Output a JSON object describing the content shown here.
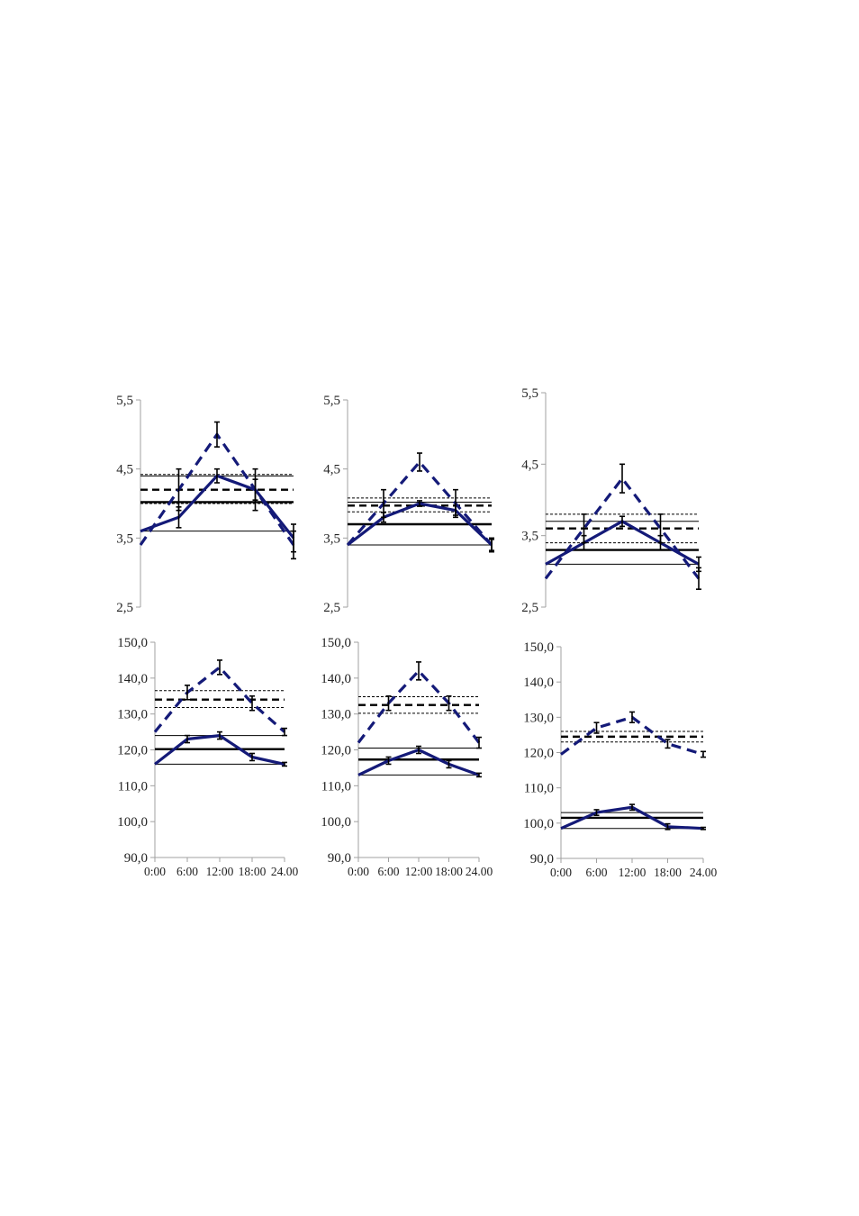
{
  "colors": {
    "series": "#141a78",
    "ref": "#000000",
    "axis": "#a0a0a0"
  },
  "chart_data": [
    {
      "type": "line",
      "yticks": [
        "5,5",
        "4,5",
        "3,5",
        "2,5"
      ],
      "ylim": [
        2.5,
        5.5
      ],
      "xlim": [
        0,
        24
      ],
      "x": [
        0,
        6,
        12,
        18,
        24
      ],
      "xticks": [],
      "series": [
        {
          "style": "solid",
          "values": [
            3.6,
            3.8,
            4.4,
            4.2,
            3.5
          ],
          "errors": [
            0,
            0.15,
            0.1,
            0.15,
            0.2
          ]
        },
        {
          "style": "dashed",
          "values": [
            3.4,
            4.2,
            5.0,
            4.2,
            3.4
          ],
          "errors": [
            0,
            0.3,
            0.18,
            0.3,
            0.2
          ]
        }
      ],
      "ref_lines": [
        {
          "y": 4.02,
          "style": "solid-thick"
        },
        {
          "y": 4.4,
          "style": "solid-thin"
        },
        {
          "y": 3.6,
          "style": "solid-thin"
        },
        {
          "y": 4.2,
          "style": "dashed-thick"
        },
        {
          "y": 4.42,
          "style": "dashed-thin"
        },
        {
          "y": 4.0,
          "style": "dashed-thin"
        }
      ]
    },
    {
      "type": "line",
      "yticks": [
        "5,5",
        "4,5",
        "3,5",
        "2,5"
      ],
      "ylim": [
        2.5,
        5.5
      ],
      "xlim": [
        0,
        24
      ],
      "x": [
        0,
        6,
        12,
        18,
        24
      ],
      "xticks": [],
      "series": [
        {
          "style": "solid",
          "values": [
            3.4,
            3.8,
            4.0,
            3.9,
            3.4
          ],
          "errors": [
            0,
            0.07,
            0.04,
            0.07,
            0.08
          ]
        },
        {
          "style": "dashed",
          "values": [
            3.4,
            4.0,
            4.6,
            4.0,
            3.4
          ],
          "errors": [
            0,
            0.2,
            0.13,
            0.2,
            0.1
          ]
        }
      ],
      "ref_lines": [
        {
          "y": 3.7,
          "style": "solid-thick"
        },
        {
          "y": 4.02,
          "style": "solid-thin"
        },
        {
          "y": 3.4,
          "style": "solid-thin"
        },
        {
          "y": 3.97,
          "style": "dashed-thick"
        },
        {
          "y": 4.08,
          "style": "dashed-thin"
        },
        {
          "y": 3.88,
          "style": "dashed-thin"
        }
      ]
    },
    {
      "type": "line",
      "yticks": [
        "5,5",
        "4,5",
        "3,5",
        "2,5"
      ],
      "ylim": [
        2.5,
        5.5
      ],
      "xlim": [
        0,
        24
      ],
      "x": [
        0,
        6,
        12,
        18,
        24
      ],
      "xticks": [],
      "series": [
        {
          "style": "solid",
          "values": [
            3.1,
            3.4,
            3.7,
            3.4,
            3.1
          ],
          "errors": [
            0,
            0.1,
            0.07,
            0.1,
            0.1
          ]
        },
        {
          "style": "dashed",
          "values": [
            2.9,
            3.6,
            4.3,
            3.6,
            2.9
          ],
          "errors": [
            0,
            0.2,
            0.2,
            0.2,
            0.15
          ]
        }
      ],
      "ref_lines": [
        {
          "y": 3.3,
          "style": "solid-thick"
        },
        {
          "y": 3.7,
          "style": "solid-thin"
        },
        {
          "y": 3.1,
          "style": "solid-thin"
        },
        {
          "y": 3.6,
          "style": "dashed-thick"
        },
        {
          "y": 3.8,
          "style": "dashed-thin"
        },
        {
          "y": 3.4,
          "style": "dashed-thin"
        }
      ]
    },
    {
      "type": "line",
      "yticks": [
        "150,0",
        "140,0",
        "130,0",
        "120,0",
        "110,0",
        "100,0",
        "90,0"
      ],
      "ylim": [
        90,
        150
      ],
      "xlim": [
        0,
        24
      ],
      "x": [
        0,
        6,
        12,
        18,
        24
      ],
      "xticks": [
        "0:00",
        "6:00",
        "12:00",
        "18:00",
        "24.00"
      ],
      "series": [
        {
          "style": "solid",
          "values": [
            116,
            123,
            124,
            118,
            116
          ],
          "errors": [
            0,
            1,
            1,
            1,
            0.5
          ]
        },
        {
          "style": "dashed",
          "values": [
            125,
            136,
            143,
            133,
            125
          ],
          "errors": [
            0,
            2,
            2,
            2,
            1
          ]
        }
      ],
      "ref_lines": [
        {
          "y": 120.2,
          "style": "solid-thick"
        },
        {
          "y": 124,
          "style": "solid-thin"
        },
        {
          "y": 116,
          "style": "solid-thin"
        },
        {
          "y": 134,
          "style": "dashed-thick"
        },
        {
          "y": 136.5,
          "style": "dashed-thin"
        },
        {
          "y": 131.8,
          "style": "dashed-thin"
        }
      ]
    },
    {
      "type": "line",
      "yticks": [
        "150,0",
        "140,0",
        "130,0",
        "120,0",
        "110,0",
        "100,0",
        "90,0"
      ],
      "ylim": [
        90,
        150
      ],
      "xlim": [
        0,
        24
      ],
      "x": [
        0,
        6,
        12,
        18,
        24
      ],
      "xticks": [
        "0:00",
        "6:00",
        "12:00",
        "18:00",
        "24.00"
      ],
      "series": [
        {
          "style": "solid",
          "values": [
            113,
            117,
            120,
            116,
            113
          ],
          "errors": [
            0,
            1,
            1,
            1,
            0.5
          ]
        },
        {
          "style": "dashed",
          "values": [
            122,
            133,
            142,
            133,
            122
          ],
          "errors": [
            0,
            2,
            2.5,
            2,
            1.5
          ]
        }
      ],
      "ref_lines": [
        {
          "y": 117.3,
          "style": "solid-thick"
        },
        {
          "y": 120.5,
          "style": "solid-thin"
        },
        {
          "y": 113,
          "style": "solid-thin"
        },
        {
          "y": 132.5,
          "style": "dashed-thick"
        },
        {
          "y": 134.8,
          "style": "dashed-thin"
        },
        {
          "y": 130.2,
          "style": "dashed-thin"
        }
      ]
    },
    {
      "type": "line",
      "yticks": [
        "150,0",
        "140,0",
        "130,0",
        "120,0",
        "110,0",
        "100,0",
        "90,0"
      ],
      "ylim": [
        90,
        150
      ],
      "xlim": [
        0,
        24
      ],
      "x": [
        0,
        6,
        12,
        18,
        24
      ],
      "xticks": [
        "0:00",
        "6:00",
        "12:00",
        "18:00",
        "24.00"
      ],
      "series": [
        {
          "style": "solid",
          "values": [
            98.5,
            103,
            104.5,
            99,
            98.5
          ],
          "errors": [
            0,
            0.8,
            0.8,
            0.8,
            0.3
          ]
        },
        {
          "style": "dashed",
          "values": [
            119.5,
            127,
            130,
            122.5,
            119.5
          ],
          "errors": [
            0,
            1.5,
            1.5,
            1.2,
            0.8
          ]
        }
      ],
      "ref_lines": [
        {
          "y": 101.5,
          "style": "solid-thick"
        },
        {
          "y": 103,
          "style": "solid-thin"
        },
        {
          "y": 98.5,
          "style": "solid-thin"
        },
        {
          "y": 124.5,
          "style": "dashed-thick"
        },
        {
          "y": 126,
          "style": "dashed-thin"
        },
        {
          "y": 123,
          "style": "dashed-thin"
        }
      ]
    }
  ]
}
